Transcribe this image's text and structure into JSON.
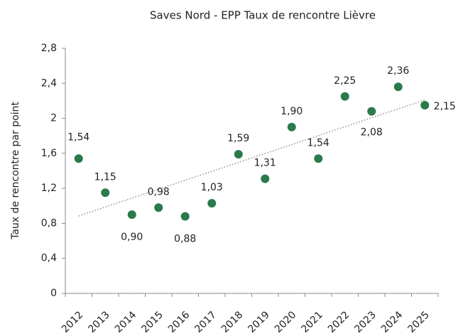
{
  "chart_data": {
    "type": "scatter",
    "title": "Saves Nord - EPP Taux de rencontre Lièvre",
    "y_label": "Taux de rencontre par point",
    "categories": [
      "2012",
      "2013",
      "2014",
      "2015",
      "2016",
      "2017",
      "2018",
      "2019",
      "2020",
      "2021",
      "2022",
      "2023",
      "2024",
      "2025"
    ],
    "values": [
      1.54,
      1.15,
      0.9,
      0.98,
      0.88,
      1.03,
      1.59,
      1.31,
      1.9,
      1.54,
      2.25,
      2.08,
      2.36,
      2.15
    ],
    "value_labels": [
      "1,54",
      "1,15",
      "0,90",
      "0,98",
      "0,88",
      "1,03",
      "1,59",
      "1,31",
      "1,90",
      "1,54",
      "2,25",
      "2,08",
      "2,36",
      "2,15"
    ],
    "color": "#2a7a4b",
    "ylim": [
      0,
      2.8
    ],
    "yticks": [
      0,
      {
        "value": 0.4,
        "label": "0,4"
      },
      {
        "value": 0.8,
        "label": "0,8"
      },
      {
        "value": 1.2,
        "label": "1,2"
      },
      {
        "value": 1.6,
        "label": "1,6"
      },
      2,
      {
        "value": 2.4,
        "label": "2,4"
      },
      {
        "value": 2.8,
        "label": "2,8"
      }
    ],
    "trendline": true,
    "grid": false
  }
}
